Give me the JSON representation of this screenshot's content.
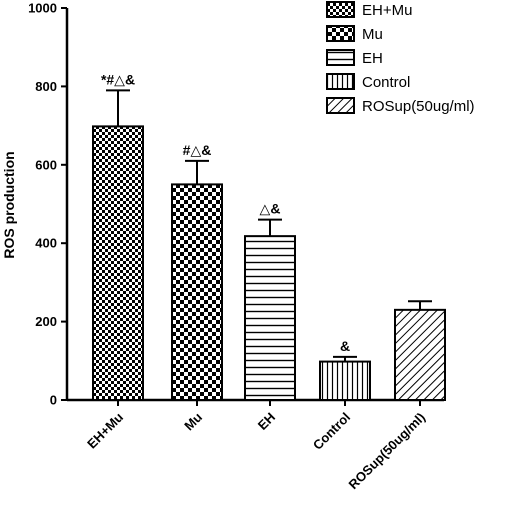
{
  "chart_data": {
    "type": "bar",
    "title": "",
    "xlabel": "",
    "ylabel": "ROS production",
    "ylim": [
      0,
      1000
    ],
    "yticks": [
      0,
      200,
      400,
      600,
      800,
      1000
    ],
    "categories": [
      "EH+Mu",
      "Mu",
      "EH",
      "Control",
      "ROSup(50ug/ml)"
    ],
    "values": [
      698,
      550,
      418,
      98,
      230
    ],
    "errors": [
      92,
      60,
      42,
      12,
      22
    ],
    "annotations": [
      "*#△&",
      "#△&",
      "△&",
      "&",
      ""
    ],
    "patterns": [
      "checker-fine",
      "checker-coarse",
      "horizontal-lines",
      "vertical-lines",
      "diagonal-lines"
    ],
    "legend": {
      "position": "top-right",
      "entries": [
        "EH+Mu",
        "Mu",
        "EH",
        "Control",
        "ROSup(50ug/ml)"
      ]
    },
    "grid": false,
    "bar_color": "#000000",
    "background": "#ffffff"
  }
}
